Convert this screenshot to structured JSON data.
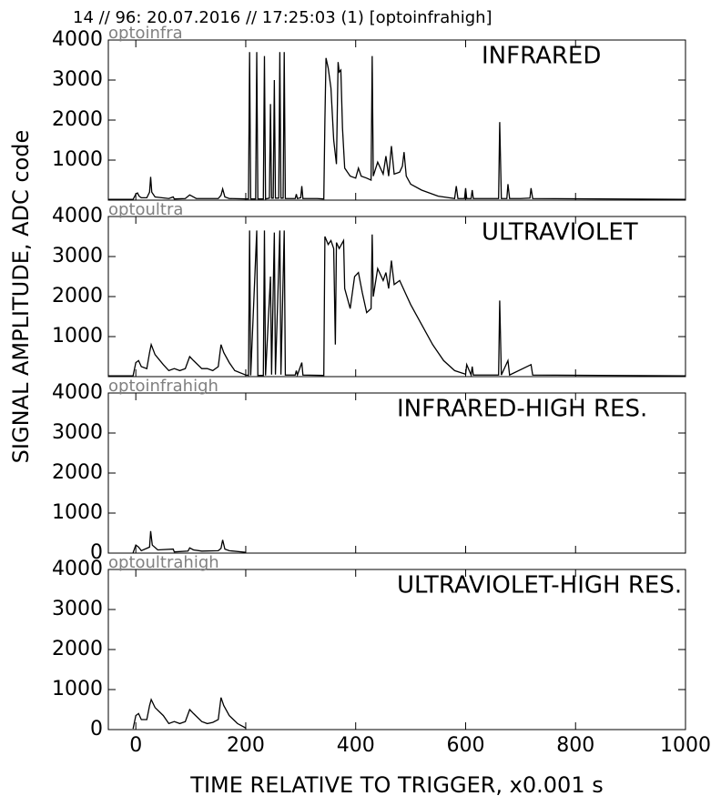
{
  "title": "14 // 96:   20.07.2016 // 17:25:03 (1)  [optoinfrahigh]",
  "y_label": "SIGNAL AMPLITUDE,  ADC code",
  "x_label": "TIME RELATIVE TO TRIGGER,   x0.001 s",
  "chart_data": [
    {
      "type": "line",
      "subtitle": "optoinfra",
      "annotation": "INFRARED",
      "xlim": [
        -50,
        1000
      ],
      "ylim": [
        0,
        4000
      ],
      "yticks": [
        1000,
        2000,
        3000,
        4000
      ],
      "x": [
        -50,
        -5,
        0,
        3,
        6,
        10,
        20,
        25,
        27,
        29,
        35,
        60,
        68,
        70,
        90,
        98,
        102,
        110,
        150,
        155,
        158,
        162,
        170,
        205,
        207,
        209,
        218,
        220,
        222,
        232,
        234,
        236,
        243,
        245,
        247,
        250,
        252,
        254,
        260,
        262,
        264,
        268,
        270,
        272,
        290,
        292,
        294,
        300,
        302,
        304,
        330,
        342,
        344,
        346,
        350,
        355,
        360,
        365,
        368,
        370,
        373,
        376,
        380,
        390,
        400,
        405,
        410,
        420,
        428,
        430,
        432,
        440,
        450,
        455,
        460,
        465,
        470,
        480,
        485,
        488,
        492,
        500,
        520,
        550,
        580,
        583,
        586,
        598,
        600,
        602,
        610,
        612,
        614,
        660,
        662,
        665,
        675,
        677,
        680,
        700,
        717,
        719,
        722,
        1000
      ],
      "series": [
        {
          "color": "#000000",
          "values": [
            20,
            20,
            150,
            180,
            100,
            60,
            60,
            200,
            580,
            200,
            80,
            40,
            80,
            30,
            40,
            130,
            100,
            40,
            40,
            120,
            280,
            80,
            40,
            30,
            3700,
            30,
            30,
            3700,
            30,
            30,
            3600,
            30,
            50,
            2400,
            50,
            50,
            3000,
            50,
            50,
            3700,
            50,
            50,
            3700,
            40,
            40,
            150,
            40,
            60,
            350,
            40,
            40,
            30,
            2000,
            3550,
            3300,
            2800,
            1500,
            900,
            3450,
            3200,
            3250,
            1800,
            800,
            600,
            550,
            800,
            600,
            550,
            500,
            3600,
            600,
            950,
            650,
            1100,
            600,
            1350,
            650,
            700,
            850,
            1200,
            600,
            400,
            250,
            100,
            40,
            350,
            40,
            40,
            300,
            40,
            40,
            250,
            40,
            40,
            1950,
            40,
            40,
            400,
            40,
            40,
            50,
            300,
            40,
            20
          ]
        }
      ]
    },
    {
      "type": "line",
      "subtitle": "optoultra",
      "annotation": "ULTRAVIOLET",
      "xlim": [
        -50,
        1000
      ],
      "ylim": [
        0,
        4000
      ],
      "yticks": [
        1000,
        2000,
        3000,
        4000
      ],
      "x": [
        -50,
        -5,
        0,
        5,
        10,
        20,
        25,
        28,
        35,
        50,
        60,
        70,
        80,
        90,
        98,
        105,
        120,
        130,
        140,
        150,
        155,
        160,
        170,
        180,
        200,
        205,
        207,
        209,
        220,
        222,
        232,
        234,
        236,
        245,
        247,
        252,
        254,
        262,
        264,
        270,
        272,
        290,
        292,
        294,
        302,
        304,
        342,
        344,
        350,
        355,
        360,
        363,
        365,
        370,
        378,
        380,
        390,
        398,
        405,
        412,
        420,
        428,
        430,
        432,
        440,
        450,
        455,
        460,
        465,
        470,
        480,
        490,
        500,
        520,
        540,
        560,
        580,
        600,
        602,
        610,
        612,
        614,
        660,
        662,
        665,
        677,
        680,
        719,
        722,
        1000
      ],
      "series": [
        {
          "color": "#000000",
          "values": [
            20,
            20,
            350,
            400,
            250,
            200,
            600,
            800,
            550,
            300,
            150,
            200,
            150,
            200,
            500,
            400,
            200,
            200,
            150,
            250,
            800,
            600,
            350,
            150,
            40,
            30,
            3650,
            30,
            3650,
            30,
            30,
            3650,
            30,
            2500,
            50,
            3600,
            50,
            3650,
            50,
            3650,
            40,
            40,
            150,
            40,
            350,
            40,
            30,
            3500,
            3300,
            3400,
            3200,
            800,
            3350,
            3200,
            3400,
            2200,
            1700,
            2500,
            2600,
            2100,
            1600,
            1700,
            3550,
            2000,
            2700,
            2400,
            2600,
            2200,
            2900,
            2300,
            2400,
            2100,
            1800,
            1300,
            800,
            400,
            150,
            60,
            300,
            40,
            250,
            40,
            40,
            1900,
            40,
            400,
            40,
            300,
            40,
            20
          ]
        }
      ]
    },
    {
      "type": "line",
      "subtitle": "optoinfrahigh",
      "annotation": "INFRARED-HIGH RES.",
      "xlim": [
        -50,
        1000
      ],
      "ylim": [
        0,
        4000
      ],
      "yticks": [
        0,
        1000,
        2000,
        3000,
        4000
      ],
      "x": [
        -5,
        0,
        5,
        10,
        25,
        27,
        30,
        40,
        68,
        70,
        95,
        98,
        105,
        120,
        150,
        155,
        158,
        162,
        170,
        200
      ],
      "series": [
        {
          "color": "#000000",
          "values": [
            10,
            200,
            150,
            60,
            150,
            550,
            200,
            80,
            100,
            30,
            50,
            130,
            80,
            50,
            60,
            120,
            330,
            100,
            60,
            20
          ]
        }
      ]
    },
    {
      "type": "line",
      "subtitle": "optoultrahigh",
      "annotation": "ULTRAVIOLET-HIGH RES.",
      "xlim": [
        -50,
        1000
      ],
      "ylim": [
        0,
        4000
      ],
      "yticks": [
        0,
        1000,
        2000,
        3000,
        4000
      ],
      "xticks": [
        0,
        200,
        400,
        600,
        800,
        1000
      ],
      "x": [
        -5,
        0,
        5,
        10,
        20,
        25,
        28,
        35,
        50,
        60,
        70,
        80,
        90,
        98,
        105,
        120,
        130,
        140,
        150,
        155,
        160,
        170,
        185,
        200
      ],
      "series": [
        {
          "color": "#000000",
          "values": [
            20,
            350,
            400,
            250,
            250,
            600,
            750,
            550,
            350,
            150,
            200,
            150,
            200,
            500,
            400,
            200,
            150,
            180,
            250,
            800,
            600,
            350,
            150,
            40
          ]
        }
      ]
    }
  ]
}
